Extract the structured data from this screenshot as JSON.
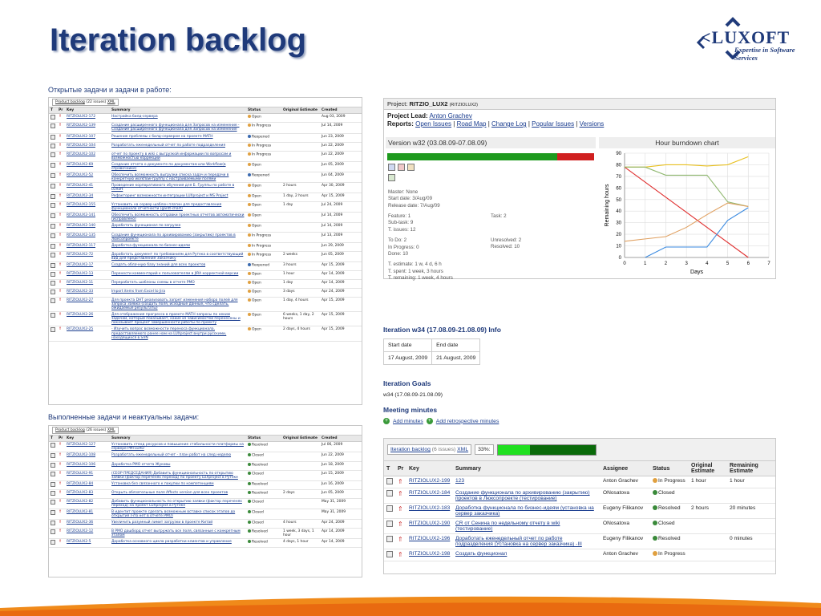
{
  "slide": {
    "title": "Iteration backlog",
    "logo_text": "LUXOFT",
    "logo_tagline": "Expertise in Software Services"
  },
  "left": {
    "open_heading": "Открытые задачи и задачи в работе:",
    "open_backlog_label": "Product backlog",
    "open_count": "(22 issues)",
    "xml_label": "XML",
    "columns": [
      "T",
      "Pr",
      "Key",
      "Summary",
      "Status",
      "Original Estimate",
      "Created"
    ],
    "open_rows": [
      {
        "key": "RITZIOLUX2-172",
        "summary": "Настройка билд-сервера",
        "status": "Open",
        "est": "",
        "created": "Aug 03, 2009"
      },
      {
        "key": "RITZIOLUX2-139",
        "summary": "Создание расширенного функционала для Запросов на изменение - Создание расширенного функционала для Запросов на изменение",
        "status": "In Progress",
        "est": "",
        "created": "Jul 14, 2009"
      },
      {
        "key": "RITZIOLUX2-107",
        "summary": "Решение проблемы с билд-сервером на проекте MATH",
        "status": "Reopened",
        "est": "",
        "created": "Jun 23, 2009"
      },
      {
        "key": "RITZIOLUX2-104",
        "summary": "Разработать еженедельный отчет по работе подразделения",
        "status": "In Progress",
        "est": "",
        "created": "Jun 22, 2009"
      },
      {
        "key": "RITZIOLUX2-102",
        "summary": "отчет по проекту в wiki с выгрузкой информации по вопросам и возможностью коррекции",
        "status": "In Progress",
        "est": "",
        "created": "Jun 22, 2009"
      },
      {
        "key": "RITZIOLUX2-69",
        "summary": "Создание отчета о документе по документам или Workflow(в справочнике)",
        "status": "Open",
        "est": "",
        "created": "Jun 05, 2009"
      },
      {
        "key": "RITZIOLUX2-52",
        "summary": "Обеспечить возможность выгрузки списка задач и передачи в конкретную workflow-группу с настраиваемыми полями",
        "status": "Reopened",
        "est": "",
        "created": "Jun 04, 2009"
      },
      {
        "key": "RITZIOLUX2-41",
        "summary": "Проведение корпоративного обучения для Б. Группы по работе в LUXoft",
        "status": "Open",
        "est": "2 hours",
        "created": "Apr 30, 2009"
      },
      {
        "key": "RITZIOLUX2-34",
        "summary": "Рефакторинг возможности интеграции LUXproject и MS Project",
        "status": "Open",
        "est": "1 day, 2 hours",
        "created": "Apr 15, 2009"
      },
      {
        "key": "RITZIOLUX2-155",
        "summary": "Установить на сервер шаблон плагин для предоставления функционала отчетности (gantt-chart)",
        "status": "Open",
        "est": "1 day",
        "created": "Jul 24, 2009"
      },
      {
        "key": "RITZIOLUX2-141",
        "summary": "Обеспечить возможность отправки проектных отчетов автоматически (исправлено)",
        "status": "Open",
        "est": "",
        "created": "Jul 14, 2009"
      },
      {
        "key": "RITZIOLUX2-140",
        "summary": "Доработать функционал по загрузке",
        "status": "Open",
        "est": "",
        "created": "Jul 14, 2009"
      },
      {
        "key": "RITZIOLUX2-135",
        "summary": "Создание функционала по архивированию (закрытию) проектов в Люксопроекте",
        "status": "In Progress",
        "est": "",
        "created": "Jul 13, 2009"
      },
      {
        "key": "RITZIOLUX2-117",
        "summary": "Доработка функционала по бизнес-идеям",
        "status": "In Progress",
        "est": "",
        "created": "Jun 29, 2009"
      },
      {
        "key": "RITZIOLUX2-72",
        "summary": "Доработать документ по требованиям для Рутека в соответствующий вид для представления Заказчику",
        "status": "In Progress",
        "est": "2 weeks",
        "created": "Jun 05, 2009"
      },
      {
        "key": "RITZIOLUX2-17",
        "summary": "Создать облачную базу знаний для всех проектов",
        "status": "Reopened",
        "est": "3 hours",
        "created": "Apr 15, 2009"
      },
      {
        "key": "RITZIOLUX2-13",
        "summary": "Перенести комментарий к пользователям в JIRA корректной версии",
        "status": "Open",
        "est": "1 hour",
        "created": "Apr 14, 2009"
      },
      {
        "key": "RITZIOLUX2-11",
        "summary": "Переработать шаблоны схемы в отчете PMO",
        "status": "Open",
        "est": "1 day",
        "created": "Apr 14, 2009"
      },
      {
        "key": "RITZIOLUX2-33",
        "summary": "Import items from Excel to Jira",
        "status": "Open",
        "est": "3 days",
        "created": "Apr 24, 2009"
      },
      {
        "key": "RITZIOLUX2-27",
        "summary": "Для проекта DHT реализовать запрет изменения набора полей для запроса Заявка (создать поля, исходные данные, что сделать, ожидаемые результаты)",
        "status": "Open",
        "est": "1 day, 4 hours",
        "created": "Apr 15, 2009"
      },
      {
        "key": "RITZIOLUX2-26",
        "summary": "Для отображения прогресса в проекте MATH запросы по неким задачам, который показывает, какие из зависимостей перенесены и показывает процент завершенности работы по проекту",
        "status": "Open",
        "est": "6 weeks, 1 day, 2 hours",
        "created": "Apr 15, 2009"
      },
      {
        "key": "RITZIOLUX2-25",
        "summary": "- Изучить вопрос возможности переноса функционала, предоставляемого ранее нам на LUXproject внутри русскими, находящихся в SVN",
        "status": "Open",
        "est": "2 days, 4 hours",
        "created": "Apr 15, 2009"
      }
    ],
    "done_heading": "Выполненные задачи и неактуальны задачи:",
    "done_backlog_label": "Product backlog",
    "done_count": "(26 issues)",
    "done_rows": [
      {
        "key": "RITZIOLUX2-127",
        "summary": "Установить стенд ресурсов и повышение стабильности платформы на сервере PMTLUXO",
        "status": "Resolved",
        "est": "",
        "created": "Jul 06, 2009"
      },
      {
        "key": "RITZIOLUX2-108",
        "summary": "Разработать еженедельный отчет - план работ на след неделю",
        "status": "Closed",
        "est": "",
        "created": "Jun 22, 2009"
      },
      {
        "key": "RITZIOLUX2-106",
        "summary": "Доработка PMO отчета Жуковы",
        "status": "Resolved",
        "est": "",
        "created": "Jun 18, 2009"
      },
      {
        "key": "RITZIOLUX2-91",
        "summary": "(СЕОР ПРЕДСЕДАНИЯ) Добавить функциональность по открытию заявки (фактор переченях переход) по проекту LUXproject в Рутеке",
        "status": "Closed",
        "est": "",
        "created": "Jun 15, 2009"
      },
      {
        "key": "RITZIOLUX2-84",
        "summary": "Установка без связанного к покупки по компетенциям",
        "status": "Resolved",
        "est": "",
        "created": "Jun 16, 2009"
      },
      {
        "key": "RITZIOLUX2-83",
        "summary": "Открыть обязательные поля Affects version для всех проектов",
        "status": "Resolved",
        "est": "2 days",
        "created": "Jun 05, 2009"
      },
      {
        "key": "RITZIOLUX2-82",
        "summary": "Добавить функциональность по открытию заявки (фактор переченях переход) на проект LUXproject в Рутеке",
        "status": "Closed",
        "est": "",
        "created": "May 31, 2009"
      },
      {
        "key": "RITZIOLUX2-81",
        "summary": "В идентит проекте сделать возможным вставке список этапов до открытия (что нет в отчете PMO)",
        "status": "Closed",
        "est": "",
        "created": "May 31, 2009"
      },
      {
        "key": "RITZIOLUX2-36",
        "summary": "Увеличить разумный лимит загрузки в проекте Китай",
        "status": "Closed",
        "est": "4 hours",
        "created": "Apr 24, 2009"
      },
      {
        "key": "RITZIOLUX2-12",
        "summary": "В PMO дашборд отчет выгружать все поля, связанные с конкретным этапом",
        "status": "Resolved",
        "est": "1 week, 3 days, 1 hour",
        "created": "Apr 14, 2009"
      },
      {
        "key": "RITZIOLUX2-5",
        "summary": "Доработка основного цикла разработки клиентов и управление",
        "status": "Resolved",
        "est": "4 days, 1 hour",
        "created": "Apr 14, 2009"
      }
    ]
  },
  "project": {
    "header_label": "Project:",
    "name": "RITZIO_LUX2",
    "code": "(RITZIOLUX2)",
    "lead_label": "Project Lead:",
    "lead_name": "Anton Grachev",
    "reports_label": "Reports:",
    "reports": [
      "Open Issues",
      "Road Map",
      "Change Log",
      "Popular Issues",
      "Versions"
    ],
    "version_title": "Version w32 (03.08.09-07.08.09)",
    "progress_done_pct": 82,
    "master": "Master: None",
    "start_date": "Start date: 3/Aug/09",
    "release_date": "Release date: 7/Aug/09",
    "feature": "Feature: 1",
    "task": "Task: 2",
    "subtask": "Sub-task: 9",
    "t_issues": "T. issues: 12",
    "todo": "To Do: 2",
    "unresolved": "Unresolved: 2",
    "in_progress": "In Progress: 0",
    "resolved": "Resolved: 10",
    "done": "Done: 10",
    "estimate": "T. estimate: 1 w, 4 d, 6 h",
    "spent": "T. spent: 1 week, 3 hours",
    "remaining": "T. remaining: 1 week, 4 hours"
  },
  "chart_data": {
    "type": "line",
    "title": "Hour burndown chart",
    "xlabel": "Days",
    "ylabel": "Remaining hours",
    "xlim": [
      0,
      7
    ],
    "ylim": [
      0,
      90
    ],
    "xticks": [
      0,
      1,
      2,
      3,
      4,
      5,
      6,
      7
    ],
    "yticks": [
      0,
      10,
      20,
      30,
      40,
      50,
      60,
      70,
      80,
      90
    ],
    "series": [
      {
        "color": "#e03030",
        "x": [
          0,
          6
        ],
        "y": [
          78,
          0
        ]
      },
      {
        "color": "#e8c020",
        "x": [
          0,
          1,
          2,
          3,
          4,
          5,
          6
        ],
        "y": [
          78,
          78,
          80,
          80,
          79,
          80,
          87
        ]
      },
      {
        "color": "#90b870",
        "x": [
          0,
          1,
          2,
          3,
          4,
          5,
          6
        ],
        "y": [
          78,
          78,
          71,
          71,
          71,
          48,
          44
        ]
      },
      {
        "color": "#e0a060",
        "x": [
          0,
          1,
          2,
          3,
          4,
          5,
          6
        ],
        "y": [
          14,
          16,
          18,
          26,
          37,
          47,
          44
        ]
      },
      {
        "color": "#3a8ae0",
        "x": [
          1,
          2,
          3,
          4,
          5,
          6
        ],
        "y": [
          0,
          9,
          9,
          9,
          32,
          43
        ]
      }
    ],
    "grid": true
  },
  "iteration": {
    "info_title": "Iteration w34 (17.08.09-21.08.09) Info",
    "start_label": "Start date",
    "end_label": "End date",
    "start_value": "17 August, 2009",
    "end_value": "21 August, 2009",
    "goals_title": "Iteration Goals",
    "goals_text": "w34 (17.08.09-21.08.09)",
    "meeting_title": "Meeting minutes",
    "add_minutes": "Add minutes",
    "add_retro": "Add retrospective minutes"
  },
  "backlog": {
    "label": "Iteration backlog",
    "count": "(6 issues)",
    "xml": "XML",
    "percent": "33%:",
    "done_fraction": 0.33,
    "columns": [
      "T",
      "Pr",
      "Key",
      "Summary",
      "Assignee",
      "Status",
      "Original Estimate",
      "Remaining Estimate"
    ],
    "rows": [
      {
        "key": "RITZIOLUX2-199",
        "summary": "123",
        "assignee": "Anton Grachev",
        "status": "In Progress",
        "est": "1 hour",
        "rem": "1 hour"
      },
      {
        "key": "RITZIOLUX2-184",
        "summary": "Создание функционала по архивированию (закрытию) проектов в Люксопроекте (тестирование)",
        "assignee": "ONosatova",
        "status": "Closed",
        "est": "",
        "rem": ""
      },
      {
        "key": "RITZIOLUX2-183",
        "summary": "Доработка функционала по бизнес-идеям (установка на сервер заказчика)",
        "assignee": "Eugeny Filikanov",
        "status": "Resolved",
        "est": "2 hours",
        "rem": "20 minutes"
      },
      {
        "key": "RITZIOLUX2-190",
        "summary": "CR от Сенина по недельному отчету в wiki (тестирование)",
        "assignee": "ONosatova",
        "status": "Closed",
        "est": "",
        "rem": ""
      },
      {
        "key": "RITZIOLUX2-196",
        "summary": "Доработать еженедельный отчет по работе подразделения (Установка на сервер заказчика) -III",
        "assignee": "Eugeny Filikanov",
        "status": "Resolved",
        "est": "",
        "rem": "0 minutes"
      },
      {
        "key": "RITZIOLUX2-198",
        "summary": "Создать функционал",
        "assignee": "Anton Grachev",
        "status": "In Progress",
        "est": "",
        "rem": ""
      }
    ]
  },
  "status_colors": {
    "Open": "#e0a040",
    "In Progress": "#e0a040",
    "Reopened": "#3a6ab0",
    "Resolved": "#3a8a3a",
    "Closed": "#3a8a3a"
  }
}
